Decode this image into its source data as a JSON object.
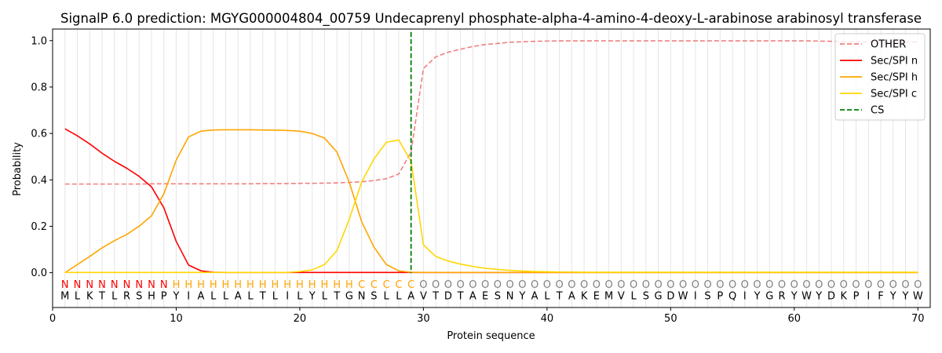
{
  "chart_data": {
    "type": "line",
    "title": "SignalP 6.0 prediction: MGYG000004804_00759 Undecaprenyl phosphate-alpha-4-amino-4-deoxy-L-arabinose arabinosyl transferase",
    "xlabel": "Protein sequence",
    "ylabel": "Probability",
    "xlim": [
      0,
      71
    ],
    "ylim": [
      -0.15,
      1.05
    ],
    "xticks": [
      0,
      10,
      20,
      30,
      40,
      50,
      60,
      70
    ],
    "xtick_labels": [
      "0",
      "10",
      "20",
      "30",
      "40",
      "50",
      "60",
      "70"
    ],
    "yticks": [
      0.0,
      0.2,
      0.4,
      0.6,
      0.8,
      1.0
    ],
    "ytick_labels": [
      "0.0",
      "0.2",
      "0.4",
      "0.6",
      "0.8",
      "1.0"
    ],
    "legend_position": "top-right",
    "cleavage_site": 29,
    "sequence": [
      "M",
      "L",
      "K",
      "T",
      "L",
      "R",
      "S",
      "H",
      "P",
      "Y",
      "I",
      "A",
      "L",
      "L",
      "A",
      "L",
      "T",
      "L",
      "I",
      "L",
      "Y",
      "L",
      "T",
      "G",
      "N",
      "S",
      "L",
      "L",
      "A",
      "V",
      "T",
      "D",
      "T",
      "A",
      "E",
      "S",
      "N",
      "Y",
      "A",
      "L",
      "T",
      "A",
      "K",
      "E",
      "M",
      "V",
      "L",
      "S",
      "G",
      "D",
      "W",
      "I",
      "S",
      "P",
      "Q",
      "I",
      "Y",
      "G",
      "R",
      "Y",
      "W",
      "Y",
      "D",
      "K",
      "P",
      "I",
      "F",
      "Y",
      "Y",
      "W"
    ],
    "region_labels": [
      "N",
      "N",
      "N",
      "N",
      "N",
      "N",
      "N",
      "N",
      "N",
      "H",
      "H",
      "H",
      "H",
      "H",
      "H",
      "H",
      "H",
      "H",
      "H",
      "H",
      "H",
      "H",
      "H",
      "H",
      "C",
      "C",
      "C",
      "C",
      "C",
      "O",
      "O",
      "O",
      "O",
      "O",
      "O",
      "O",
      "O",
      "O",
      "O",
      "O",
      "O",
      "O",
      "O",
      "O",
      "O",
      "O",
      "O",
      "O",
      "O",
      "O",
      "O",
      "O",
      "O",
      "O",
      "O",
      "O",
      "O",
      "O",
      "O",
      "O",
      "O",
      "O",
      "O",
      "O",
      "O",
      "O",
      "O",
      "O",
      "O",
      "O"
    ],
    "region_colors": {
      "N": "#ff0000",
      "H": "#ffa500",
      "C": "#ffa500",
      "O": "#808080"
    },
    "series": [
      {
        "name": "OTHER",
        "color": "#f08080",
        "dash": "dashed",
        "values": [
          0.382,
          0.382,
          0.382,
          0.382,
          0.382,
          0.382,
          0.382,
          0.383,
          0.383,
          0.383,
          0.383,
          0.383,
          0.383,
          0.383,
          0.383,
          0.383,
          0.384,
          0.384,
          0.384,
          0.385,
          0.385,
          0.386,
          0.387,
          0.389,
          0.392,
          0.397,
          0.405,
          0.425,
          0.52,
          0.88,
          0.93,
          0.95,
          0.963,
          0.975,
          0.983,
          0.988,
          0.993,
          0.995,
          0.997,
          0.998,
          0.999,
          0.999,
          0.999,
          0.999,
          0.999,
          0.999,
          0.999,
          0.999,
          0.999,
          0.999,
          0.999,
          0.999,
          0.999,
          0.999,
          0.999,
          0.999,
          0.999,
          0.999,
          0.999,
          0.999,
          0.999,
          0.998,
          0.997,
          0.996,
          0.995,
          0.995,
          0.994,
          0.994,
          0.994,
          0.994
        ]
      },
      {
        "name": "Sec/SPI n",
        "color": "#ff0000",
        "dash": "solid",
        "values": [
          0.62,
          0.59,
          0.555,
          0.515,
          0.48,
          0.45,
          0.415,
          0.37,
          0.28,
          0.135,
          0.033,
          0.008,
          0.002,
          0.001,
          0.001,
          0.001,
          0.001,
          0.001,
          0.001,
          0.001,
          0.001,
          0.001,
          0.001,
          0.001,
          0.001,
          0.001,
          0.001,
          0.001,
          0.001,
          0.001,
          0.001,
          0.001,
          0.001,
          0.001,
          0.001,
          0.001,
          0.001,
          0.001,
          0.001,
          0.001,
          0.001,
          0.001,
          0.001,
          0.001,
          0.001,
          0.001,
          0.001,
          0.001,
          0.001,
          0.001,
          0.001,
          0.001,
          0.001,
          0.001,
          0.001,
          0.001,
          0.001,
          0.001,
          0.001,
          0.001,
          0.001,
          0.001,
          0.001,
          0.001,
          0.001,
          0.001,
          0.001,
          0.001,
          0.001,
          0.001
        ]
      },
      {
        "name": "Sec/SPI h",
        "color": "#ffa500",
        "dash": "solid",
        "values": [
          0.0,
          0.035,
          0.07,
          0.107,
          0.138,
          0.165,
          0.2,
          0.245,
          0.34,
          0.485,
          0.585,
          0.61,
          0.615,
          0.616,
          0.616,
          0.616,
          0.615,
          0.614,
          0.613,
          0.61,
          0.6,
          0.58,
          0.52,
          0.39,
          0.22,
          0.11,
          0.035,
          0.008,
          0.002,
          0.001,
          0.001,
          0.001,
          0.001,
          0.001,
          0.001,
          0.001,
          0.001,
          0.001,
          0.001,
          0.001,
          0.001,
          0.001,
          0.001,
          0.001,
          0.001,
          0.001,
          0.001,
          0.001,
          0.001,
          0.001,
          0.001,
          0.001,
          0.001,
          0.001,
          0.001,
          0.001,
          0.001,
          0.001,
          0.001,
          0.001,
          0.001,
          0.001,
          0.001,
          0.001,
          0.001,
          0.001,
          0.001,
          0.001,
          0.001,
          0.001
        ]
      },
      {
        "name": "Sec/SPI c",
        "color": "#ffd700",
        "dash": "solid",
        "values": [
          0.001,
          0.001,
          0.001,
          0.001,
          0.001,
          0.001,
          0.001,
          0.001,
          0.001,
          0.001,
          0.001,
          0.001,
          0.001,
          0.001,
          0.001,
          0.001,
          0.001,
          0.001,
          0.001,
          0.005,
          0.012,
          0.035,
          0.095,
          0.23,
          0.39,
          0.49,
          0.562,
          0.572,
          0.48,
          0.12,
          0.07,
          0.05,
          0.037,
          0.027,
          0.019,
          0.014,
          0.01,
          0.007,
          0.005,
          0.004,
          0.003,
          0.003,
          0.002,
          0.002,
          0.002,
          0.002,
          0.002,
          0.002,
          0.002,
          0.002,
          0.002,
          0.002,
          0.002,
          0.002,
          0.002,
          0.002,
          0.002,
          0.002,
          0.002,
          0.002,
          0.002,
          0.002,
          0.002,
          0.002,
          0.002,
          0.002,
          0.002,
          0.002,
          0.002,
          0.002
        ]
      }
    ],
    "cs_legend": {
      "name": "CS",
      "color": "#008000",
      "dash": "dashed"
    }
  }
}
